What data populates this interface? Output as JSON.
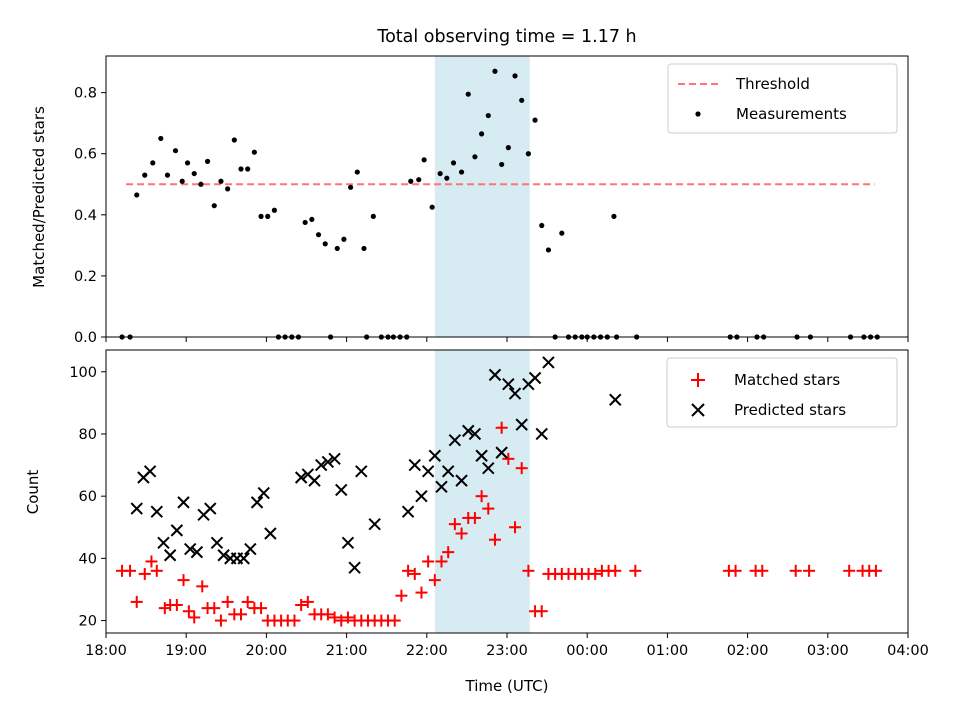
{
  "colors": {
    "threshold": "#ff7575",
    "measurement": "#000000",
    "matched": "#ff0000",
    "predicted": "#000000",
    "shade": "#add8e6"
  },
  "chart_data": [
    {
      "type": "scatter",
      "title": "Total observing time = 1.17 h",
      "xlabel": "",
      "ylabel": "Matched/Predicted stars",
      "xlim": [
        "18:00",
        "04:00"
      ],
      "ylim": [
        0,
        0.92
      ],
      "yticks": [
        "0.0",
        "0.2",
        "0.4",
        "0.6",
        "0.8"
      ],
      "ytick_values": [
        0,
        0.2,
        0.4,
        0.6,
        0.8
      ],
      "grid": false,
      "legend": "top-right",
      "shaded_span": [
        "22:06",
        "23:17"
      ],
      "threshold": {
        "name": "Threshold",
        "y": 0.5,
        "x_from": "18:15",
        "x_to": "03:35"
      },
      "series": [
        {
          "name": "Measurements",
          "marker": "dot",
          "points": [
            [
              "18:12",
              0
            ],
            [
              "18:18",
              0
            ],
            [
              "18:23",
              0.465
            ],
            [
              "18:29",
              0.53
            ],
            [
              "18:35",
              0.57
            ],
            [
              "18:41",
              0.65
            ],
            [
              "18:46",
              0.53
            ],
            [
              "18:52",
              0.61
            ],
            [
              "18:57",
              0.51
            ],
            [
              "19:01",
              0.57
            ],
            [
              "19:06",
              0.535
            ],
            [
              "19:11",
              0.5
            ],
            [
              "19:16",
              0.575
            ],
            [
              "19:21",
              0.43
            ],
            [
              "19:26",
              0.51
            ],
            [
              "19:31",
              0.485
            ],
            [
              "19:36",
              0.645
            ],
            [
              "19:41",
              0.55
            ],
            [
              "19:46",
              0.55
            ],
            [
              "19:51",
              0.605
            ],
            [
              "19:56",
              0.395
            ],
            [
              "20:01",
              0.395
            ],
            [
              "20:06",
              0.415
            ],
            [
              "20:09",
              0
            ],
            [
              "20:14",
              0
            ],
            [
              "20:19",
              0
            ],
            [
              "20:24",
              0
            ],
            [
              "20:29",
              0.375
            ],
            [
              "20:34",
              0.385
            ],
            [
              "20:39",
              0.335
            ],
            [
              "20:44",
              0.305
            ],
            [
              "20:48",
              0
            ],
            [
              "20:53",
              0.29
            ],
            [
              "20:58",
              0.32
            ],
            [
              "21:03",
              0.49
            ],
            [
              "21:08",
              0.54
            ],
            [
              "21:13",
              0.29
            ],
            [
              "21:15",
              0
            ],
            [
              "21:20",
              0.395
            ],
            [
              "21:26",
              0
            ],
            [
              "21:31",
              0
            ],
            [
              "21:35",
              0
            ],
            [
              "21:40",
              0
            ],
            [
              "21:45",
              0
            ],
            [
              "21:48",
              0.51
            ],
            [
              "21:54",
              0.515
            ],
            [
              "21:58",
              0.58
            ],
            [
              "22:04",
              0.425
            ],
            [
              "22:10",
              0.535
            ],
            [
              "22:15",
              0.52
            ],
            [
              "22:20",
              0.57
            ],
            [
              "22:26",
              0.54
            ],
            [
              "22:31",
              0.795
            ],
            [
              "22:36",
              0.59
            ],
            [
              "22:41",
              0.665
            ],
            [
              "22:46",
              0.725
            ],
            [
              "22:51",
              0.87
            ],
            [
              "22:56",
              0.565
            ],
            [
              "23:01",
              0.62
            ],
            [
              "23:06",
              0.855
            ],
            [
              "23:11",
              0.775
            ],
            [
              "23:16",
              0.6
            ],
            [
              "23:21",
              0.71
            ],
            [
              "23:26",
              0.365
            ],
            [
              "23:31",
              0.285
            ],
            [
              "23:36",
              0
            ],
            [
              "23:41",
              0.34
            ],
            [
              "23:46",
              0
            ],
            [
              "23:51",
              0
            ],
            [
              "23:56",
              0
            ],
            [
              "00:00",
              0
            ],
            [
              "00:05",
              0
            ],
            [
              "00:10",
              0
            ],
            [
              "00:15",
              0
            ],
            [
              "00:20",
              0.395
            ],
            [
              "00:22",
              0
            ],
            [
              "00:37",
              0
            ],
            [
              "01:47",
              0
            ],
            [
              "01:52",
              0
            ],
            [
              "02:07",
              0
            ],
            [
              "02:12",
              0
            ],
            [
              "02:37",
              0
            ],
            [
              "02:47",
              0
            ],
            [
              "03:17",
              0
            ],
            [
              "03:27",
              0
            ],
            [
              "03:32",
              0
            ],
            [
              "03:37",
              0
            ]
          ]
        }
      ]
    },
    {
      "type": "scatter",
      "title": "",
      "xlabel": "Time (UTC)",
      "ylabel": "Count",
      "xlim": [
        "18:00",
        "04:00"
      ],
      "ylim": [
        16,
        107
      ],
      "xticks": [
        "18:00",
        "19:00",
        "20:00",
        "21:00",
        "22:00",
        "23:00",
        "00:00",
        "01:00",
        "02:00",
        "03:00",
        "04:00"
      ],
      "yticks": [
        "20",
        "40",
        "60",
        "80",
        "100"
      ],
      "ytick_values": [
        20,
        40,
        60,
        80,
        100
      ],
      "grid": false,
      "legend": "top-right",
      "shaded_span": [
        "22:06",
        "23:17"
      ],
      "series": [
        {
          "name": "Matched stars",
          "marker": "plus",
          "points": [
            [
              "18:12",
              36
            ],
            [
              "18:18",
              36
            ],
            [
              "18:23",
              26
            ],
            [
              "18:29",
              35
            ],
            [
              "18:34",
              39
            ],
            [
              "18:38",
              36
            ],
            [
              "18:44",
              24
            ],
            [
              "18:48",
              25
            ],
            [
              "18:53",
              25
            ],
            [
              "18:58",
              33
            ],
            [
              "19:02",
              23
            ],
            [
              "19:06",
              21
            ],
            [
              "19:12",
              31
            ],
            [
              "19:16",
              24
            ],
            [
              "19:21",
              24
            ],
            [
              "19:26",
              20
            ],
            [
              "19:31",
              26
            ],
            [
              "19:36",
              22
            ],
            [
              "19:41",
              22
            ],
            [
              "19:46",
              26
            ],
            [
              "19:51",
              24
            ],
            [
              "19:56",
              24
            ],
            [
              "20:01",
              20
            ],
            [
              "20:06",
              20
            ],
            [
              "20:11",
              20
            ],
            [
              "20:16",
              20
            ],
            [
              "20:21",
              20
            ],
            [
              "20:26",
              25
            ],
            [
              "20:31",
              26
            ],
            [
              "20:36",
              22
            ],
            [
              "20:41",
              22
            ],
            [
              "20:46",
              22
            ],
            [
              "20:51",
              21
            ],
            [
              "20:56",
              20
            ],
            [
              "21:01",
              21
            ],
            [
              "21:06",
              20
            ],
            [
              "21:11",
              20
            ],
            [
              "21:16",
              20
            ],
            [
              "21:21",
              20
            ],
            [
              "21:26",
              20
            ],
            [
              "21:31",
              20
            ],
            [
              "21:36",
              20
            ],
            [
              "21:41",
              28
            ],
            [
              "21:46",
              36
            ],
            [
              "21:51",
              35
            ],
            [
              "21:56",
              29
            ],
            [
              "22:01",
              39
            ],
            [
              "22:06",
              33
            ],
            [
              "22:11",
              39
            ],
            [
              "22:16",
              42
            ],
            [
              "22:21",
              51
            ],
            [
              "22:26",
              48
            ],
            [
              "22:31",
              53
            ],
            [
              "22:36",
              53
            ],
            [
              "22:41",
              60
            ],
            [
              "22:46",
              56
            ],
            [
              "22:51",
              46
            ],
            [
              "22:56",
              82
            ],
            [
              "23:01",
              72
            ],
            [
              "23:06",
              50
            ],
            [
              "23:11",
              69
            ],
            [
              "23:16",
              36
            ],
            [
              "23:21",
              23
            ],
            [
              "23:26",
              23
            ],
            [
              "23:31",
              35
            ],
            [
              "23:36",
              35
            ],
            [
              "23:41",
              35
            ],
            [
              "23:46",
              35
            ],
            [
              "23:51",
              35
            ],
            [
              "23:56",
              35
            ],
            [
              "00:01",
              35
            ],
            [
              "00:06",
              35
            ],
            [
              "00:11",
              36
            ],
            [
              "00:16",
              36
            ],
            [
              "00:21",
              36
            ],
            [
              "00:36",
              36
            ],
            [
              "01:46",
              36
            ],
            [
              "01:51",
              36
            ],
            [
              "02:06",
              36
            ],
            [
              "02:11",
              36
            ],
            [
              "02:36",
              36
            ],
            [
              "02:46",
              36
            ],
            [
              "03:16",
              36
            ],
            [
              "03:26",
              36
            ],
            [
              "03:31",
              36
            ],
            [
              "03:36",
              36
            ]
          ]
        },
        {
          "name": "Predicted stars",
          "marker": "x",
          "points": [
            [
              "18:23",
              56
            ],
            [
              "18:28",
              66
            ],
            [
              "18:33",
              68
            ],
            [
              "18:38",
              55
            ],
            [
              "18:43",
              45
            ],
            [
              "18:48",
              41
            ],
            [
              "18:53",
              49
            ],
            [
              "18:58",
              58
            ],
            [
              "19:03",
              43
            ],
            [
              "19:08",
              42
            ],
            [
              "19:13",
              54
            ],
            [
              "19:18",
              56
            ],
            [
              "19:23",
              45
            ],
            [
              "19:28",
              41
            ],
            [
              "19:33",
              40
            ],
            [
              "19:38",
              40
            ],
            [
              "19:43",
              40
            ],
            [
              "19:48",
              43
            ],
            [
              "19:53",
              58
            ],
            [
              "19:58",
              61
            ],
            [
              "20:03",
              48
            ],
            [
              "20:26",
              66
            ],
            [
              "20:31",
              67
            ],
            [
              "20:36",
              65
            ],
            [
              "20:41",
              70
            ],
            [
              "20:46",
              71
            ],
            [
              "20:51",
              72
            ],
            [
              "20:56",
              62
            ],
            [
              "21:01",
              45
            ],
            [
              "21:06",
              37
            ],
            [
              "21:11",
              68
            ],
            [
              "21:21",
              51
            ],
            [
              "21:46",
              55
            ],
            [
              "21:51",
              70
            ],
            [
              "21:56",
              60
            ],
            [
              "22:01",
              68
            ],
            [
              "22:06",
              73
            ],
            [
              "22:11",
              63
            ],
            [
              "22:16",
              68
            ],
            [
              "22:21",
              78
            ],
            [
              "22:26",
              65
            ],
            [
              "22:31",
              81
            ],
            [
              "22:36",
              80
            ],
            [
              "22:41",
              73
            ],
            [
              "22:46",
              69
            ],
            [
              "22:51",
              99
            ],
            [
              "22:56",
              74
            ],
            [
              "23:01",
              96
            ],
            [
              "23:06",
              93
            ],
            [
              "23:11",
              83
            ],
            [
              "23:16",
              96
            ],
            [
              "23:21",
              98
            ],
            [
              "23:26",
              80
            ],
            [
              "23:31",
              103
            ],
            [
              "00:21",
              91
            ]
          ]
        }
      ]
    }
  ]
}
